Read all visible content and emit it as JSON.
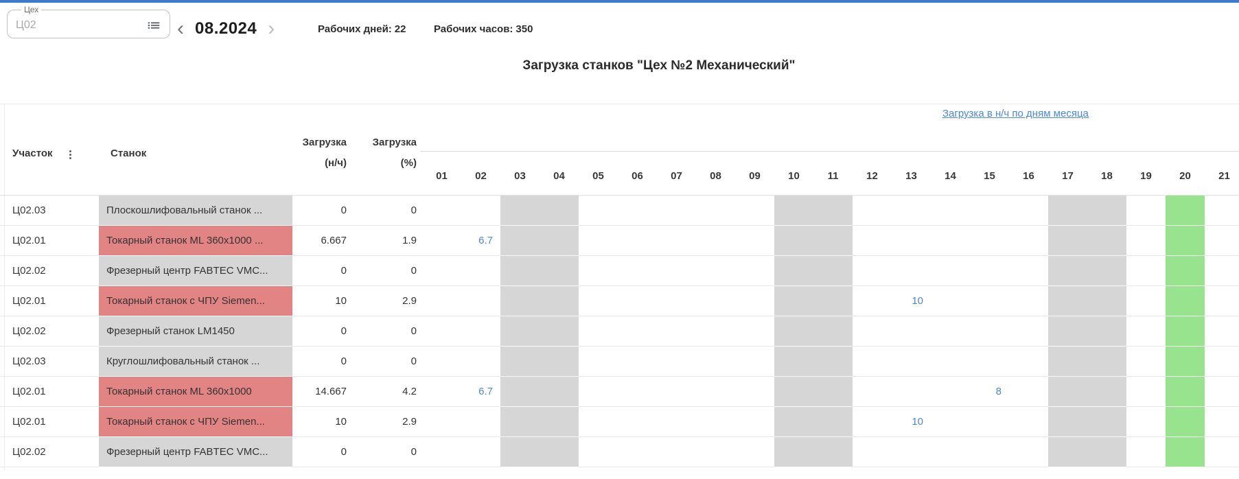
{
  "colors": {
    "top_bar": "#3d7bce",
    "link_blue": "#4a86e8",
    "machine_loaded": "#e28484",
    "machine_idle": "#d6d6d6",
    "weekend_gray": "#d6d6d6",
    "today_green": "#98e38e"
  },
  "toolbar": {
    "workshop_filter": {
      "label": "Цех",
      "value": "Ц02"
    },
    "month": "08.2024",
    "prev_glyph": "‹",
    "next_glyph": "›",
    "working_days": {
      "label": "Рабочих дней:",
      "value": "22"
    },
    "working_hours": {
      "label": "Рабочих часов:",
      "value": "350"
    }
  },
  "title": "Загрузка станков \"Цех №2 Механический\"",
  "table": {
    "link_label": "Загрузка в н/ч по дням месяца",
    "headers": {
      "section": "Участок",
      "machine": "Станок",
      "load_nh_line1": "Загрузка",
      "load_nh_line2": "(н/ч)",
      "load_pct_line1": "Загрузка",
      "load_pct_line2": "(%)"
    },
    "days": [
      "01",
      "02",
      "03",
      "04",
      "05",
      "06",
      "07",
      "08",
      "09",
      "10",
      "11",
      "12",
      "13",
      "14",
      "15",
      "16",
      "17",
      "18",
      "19",
      "20",
      "21"
    ],
    "weekend_days": [
      3,
      4,
      10,
      11,
      17,
      18
    ],
    "today_day": 20,
    "rows": [
      {
        "uchastok": "Ц02.03",
        "stanok": "Плоскошлифовальный станок ...",
        "status": "idle",
        "load_nh": "0",
        "load_pct": "0",
        "day_values": {}
      },
      {
        "uchastok": "Ц02.01",
        "stanok": "Токарный станок ML 360x1000 ...",
        "status": "loaded",
        "load_nh": "6.667",
        "load_pct": "1.9",
        "day_values": {
          "02": "6.7"
        }
      },
      {
        "uchastok": "Ц02.02",
        "stanok": "Фрезерный центр FABTEC VMC...",
        "status": "idle",
        "load_nh": "0",
        "load_pct": "0",
        "day_values": {}
      },
      {
        "uchastok": "Ц02.01",
        "stanok": "Токарный станок с ЧПУ Siemen...",
        "status": "loaded",
        "load_nh": "10",
        "load_pct": "2.9",
        "day_values": {
          "13": "10"
        }
      },
      {
        "uchastok": "Ц02.02",
        "stanok": "Фрезерный станок LM1450",
        "status": "idle",
        "load_nh": "0",
        "load_pct": "0",
        "day_values": {}
      },
      {
        "uchastok": "Ц02.03",
        "stanok": "Круглошлифовальный станок ...",
        "status": "idle",
        "load_nh": "0",
        "load_pct": "0",
        "day_values": {}
      },
      {
        "uchastok": "Ц02.01",
        "stanok": "Токарный станок ML 360x1000",
        "status": "loaded",
        "load_nh": "14.667",
        "load_pct": "4.2",
        "day_values": {
          "02": "6.7",
          "15": "8"
        }
      },
      {
        "uchastok": "Ц02.01",
        "stanok": "Токарный станок с ЧПУ Siemen...",
        "status": "loaded",
        "load_nh": "10",
        "load_pct": "2.9",
        "day_values": {
          "13": "10"
        }
      },
      {
        "uchastok": "Ц02.02",
        "stanok": "Фрезерный центр FABTEC VMC...",
        "status": "idle",
        "load_nh": "0",
        "load_pct": "0",
        "day_values": {}
      }
    ]
  }
}
